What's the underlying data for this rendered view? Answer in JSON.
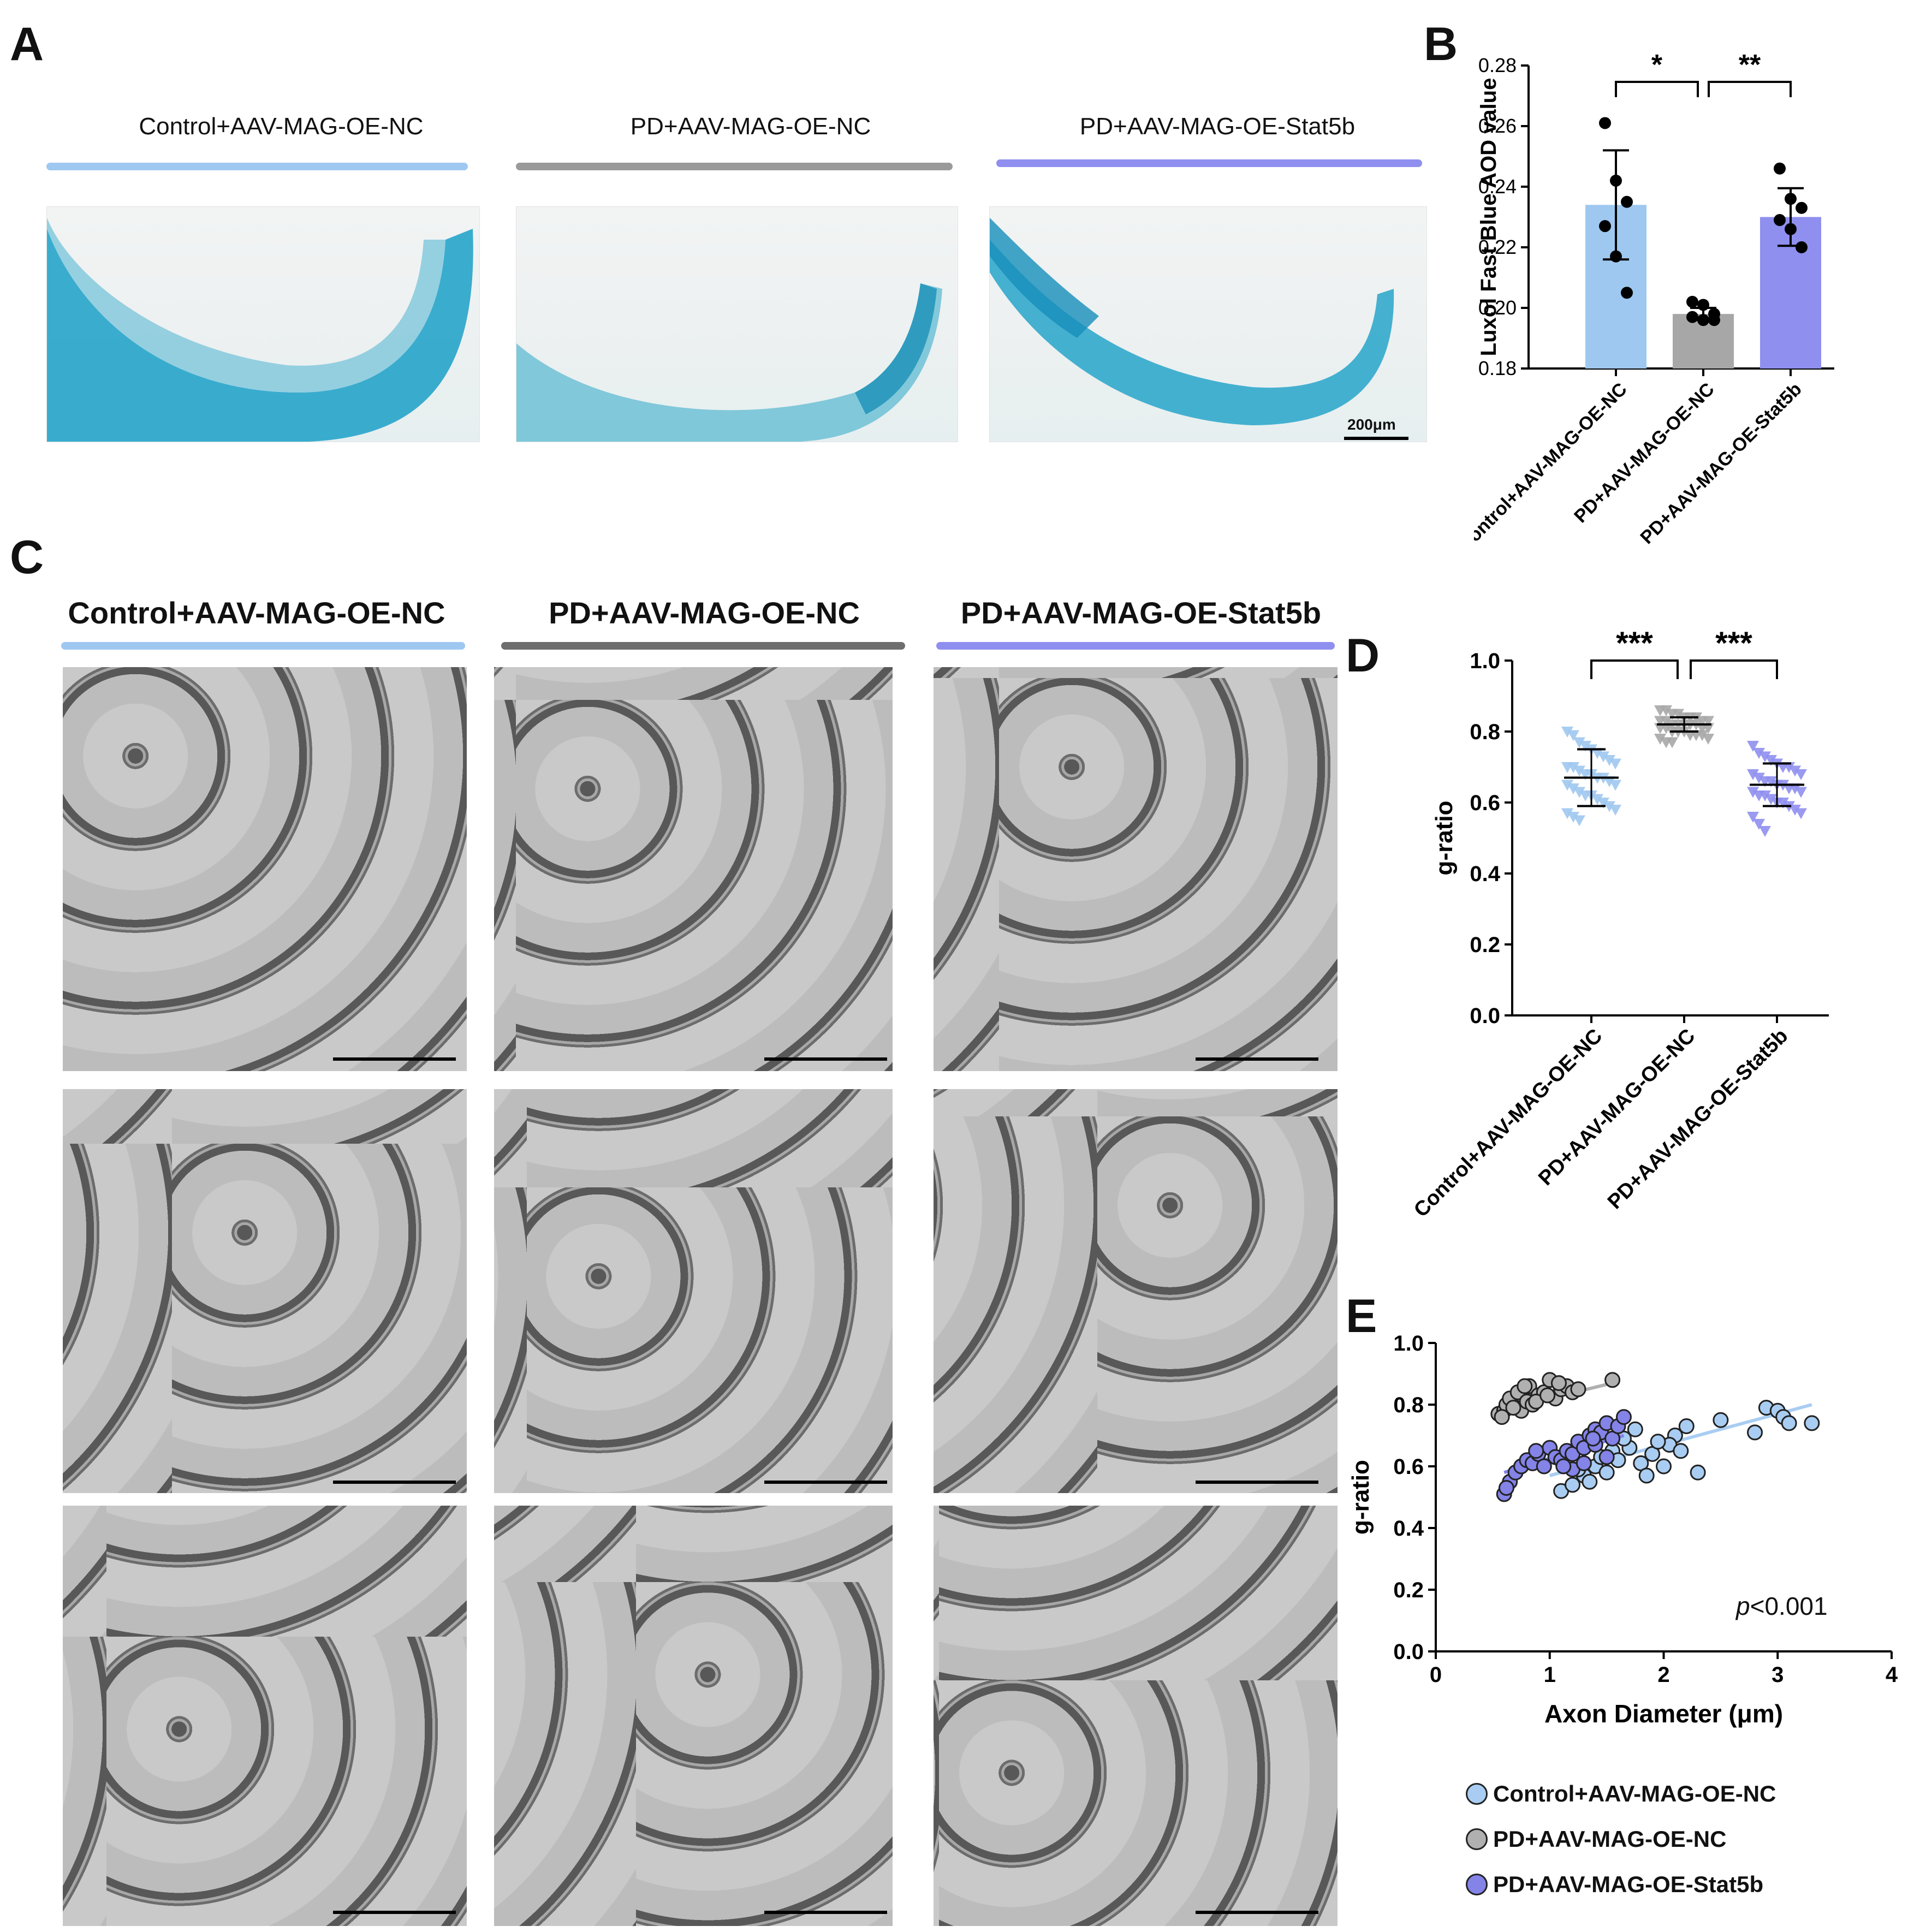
{
  "panels": {
    "A": {
      "letter": "A",
      "groups": [
        "Control+AAV-MAG-OE-NC",
        "PD+AAV-MAG-OE-NC",
        "PD+AAV-MAG-OE-Stat5b"
      ],
      "colors": [
        "#9ec8f0",
        "#9a9a9a",
        "#8f8ff0"
      ],
      "scale_label": "200μm"
    },
    "B": {
      "letter": "B"
    },
    "C": {
      "letter": "C",
      "groups": [
        "Control+AAV-MAG-OE-NC",
        "PD+AAV-MAG-OE-NC",
        "PD+AAV-MAG-OE-Stat5b"
      ],
      "colors": [
        "#9ec8f0",
        "#6e6e6e",
        "#8f8ff0"
      ]
    },
    "D": {
      "letter": "D"
    },
    "E": {
      "letter": "E",
      "p_prefix": "p",
      "p_value": "<0.001",
      "legend": [
        "Control+AAV-MAG-OE-NC",
        "PD+AAV-MAG-OE-NC",
        "PD+AAV-MAG-OE-Stat5b"
      ]
    }
  },
  "chart_data": [
    {
      "panel": "B",
      "type": "bar",
      "categories": [
        "Control+AAV-MAG-OE-NC",
        "PD+AAV-MAG-OE-NC",
        "PD+AAV-MAG-OE-Stat5b"
      ],
      "values": [
        0.234,
        0.198,
        0.23
      ],
      "errors": [
        0.018,
        0.002,
        0.0095
      ],
      "points": [
        [
          0.261,
          0.242,
          0.235,
          0.227,
          0.217,
          0.205
        ],
        [
          0.202,
          0.201,
          0.198,
          0.197,
          0.196,
          0.196
        ],
        [
          0.246,
          0.236,
          0.233,
          0.229,
          0.226,
          0.22
        ]
      ],
      "colors": [
        "#9ec8f0",
        "#a7a7a7",
        "#8f8ff0"
      ],
      "ylabel": "Luxol Fast Blue AOD value",
      "ylim": [
        0.18,
        0.28
      ],
      "yticks": [
        "0.18",
        "0.20",
        "0.22",
        "0.24",
        "0.26",
        "0.28"
      ],
      "significance": [
        {
          "pair": [
            0,
            1
          ],
          "label": "*"
        },
        {
          "pair": [
            1,
            2
          ],
          "label": "**"
        }
      ]
    },
    {
      "panel": "D",
      "type": "scatter",
      "categories": [
        "Control+AAV-MAG-OE-NC",
        "PD+AAV-MAG-OE-NC",
        "PD+AAV-MAG-OE-Stat5b"
      ],
      "means": [
        0.67,
        0.82,
        0.65
      ],
      "sd": [
        0.08,
        0.02,
        0.06
      ],
      "points": [
        [
          0.8,
          0.79,
          0.77,
          0.76,
          0.75,
          0.74,
          0.73,
          0.72,
          0.71,
          0.7,
          0.7,
          0.69,
          0.68,
          0.68,
          0.67,
          0.67,
          0.66,
          0.65,
          0.65,
          0.64,
          0.63,
          0.62,
          0.62,
          0.61,
          0.6,
          0.59,
          0.58,
          0.57,
          0.56,
          0.55
        ],
        [
          0.86,
          0.86,
          0.85,
          0.85,
          0.84,
          0.84,
          0.84,
          0.83,
          0.83,
          0.83,
          0.83,
          0.82,
          0.82,
          0.82,
          0.82,
          0.82,
          0.81,
          0.81,
          0.81,
          0.81,
          0.8,
          0.8,
          0.8,
          0.79,
          0.79,
          0.79,
          0.78,
          0.78,
          0.77,
          0.77
        ],
        [
          0.76,
          0.74,
          0.73,
          0.72,
          0.71,
          0.7,
          0.7,
          0.69,
          0.68,
          0.68,
          0.67,
          0.66,
          0.66,
          0.65,
          0.65,
          0.64,
          0.64,
          0.63,
          0.63,
          0.62,
          0.62,
          0.61,
          0.6,
          0.6,
          0.59,
          0.58,
          0.57,
          0.56,
          0.54,
          0.52
        ]
      ],
      "colors": [
        "#9ec8f0",
        "#a7a7a7",
        "#8f8ff0"
      ],
      "ylabel": "g-ratio",
      "ylim": [
        0.0,
        1.0
      ],
      "yticks": [
        "0.0",
        "0.2",
        "0.4",
        "0.6",
        "0.8",
        "1.0"
      ],
      "significance": [
        {
          "pair": [
            0,
            1
          ],
          "label": "***"
        },
        {
          "pair": [
            1,
            2
          ],
          "label": "***"
        }
      ]
    },
    {
      "panel": "E",
      "type": "scatter",
      "xlabel": "Axon Diameter (μm)",
      "ylabel": "g-ratio",
      "xlim": [
        0,
        4
      ],
      "ylim": [
        0.0,
        1.0
      ],
      "xticks": [
        "0",
        "1",
        "2",
        "3",
        "4"
      ],
      "yticks": [
        "0.0",
        "0.2",
        "0.4",
        "0.6",
        "0.8",
        "1.0"
      ],
      "series": [
        {
          "name": "Control+AAV-MAG-OE-NC",
          "color": "#a9cdf2",
          "x": [
            1.1,
            1.2,
            1.3,
            1.35,
            1.4,
            1.5,
            1.55,
            1.6,
            1.7,
            1.8,
            1.9,
            2.0,
            2.1,
            2.2,
            1.65,
            1.75,
            2.05,
            2.3,
            2.5,
            2.8,
            2.9,
            3.0,
            3.05,
            3.1,
            3.3,
            1.45,
            1.25,
            1.85,
            1.95,
            2.15
          ],
          "y": [
            0.52,
            0.54,
            0.57,
            0.55,
            0.6,
            0.58,
            0.65,
            0.62,
            0.66,
            0.61,
            0.64,
            0.6,
            0.7,
            0.73,
            0.69,
            0.72,
            0.67,
            0.58,
            0.75,
            0.71,
            0.79,
            0.78,
            0.76,
            0.74,
            0.74,
            0.63,
            0.59,
            0.57,
            0.68,
            0.65
          ],
          "trend": [
            [
              1.0,
              0.57
            ],
            [
              3.3,
              0.8
            ]
          ]
        },
        {
          "name": "PD+AAV-MAG-OE-NC",
          "color": "#b0b0b0",
          "x": [
            0.55,
            0.6,
            0.62,
            0.65,
            0.7,
            0.72,
            0.75,
            0.8,
            0.82,
            0.85,
            0.9,
            0.95,
            1.0,
            1.05,
            1.1,
            1.15,
            1.2,
            1.25,
            1.55,
            0.68,
            0.78,
            0.88,
            0.98,
            1.08,
            0.58
          ],
          "y": [
            0.77,
            0.78,
            0.8,
            0.82,
            0.79,
            0.84,
            0.78,
            0.81,
            0.86,
            0.8,
            0.83,
            0.84,
            0.88,
            0.82,
            0.85,
            0.86,
            0.84,
            0.85,
            0.88,
            0.79,
            0.86,
            0.81,
            0.83,
            0.87,
            0.76
          ],
          "trend": [
            [
              0.55,
              0.78
            ],
            [
              1.55,
              0.87
            ]
          ]
        },
        {
          "name": "PD+AAV-MAG-OE-Stat5b",
          "color": "#8383e8",
          "x": [
            0.6,
            0.65,
            0.7,
            0.75,
            0.8,
            0.85,
            0.9,
            0.95,
            1.0,
            1.05,
            1.1,
            1.15,
            1.2,
            1.25,
            1.3,
            1.35,
            1.4,
            1.45,
            1.5,
            1.55,
            1.6,
            1.65,
            1.2,
            1.3,
            1.4,
            1.5,
            0.62,
            0.88,
            1.12,
            1.38
          ],
          "y": [
            0.51,
            0.55,
            0.58,
            0.6,
            0.62,
            0.61,
            0.64,
            0.6,
            0.66,
            0.63,
            0.62,
            0.65,
            0.64,
            0.68,
            0.66,
            0.7,
            0.72,
            0.71,
            0.74,
            0.69,
            0.73,
            0.76,
            0.59,
            0.61,
            0.67,
            0.63,
            0.53,
            0.65,
            0.6,
            0.69
          ],
          "trend": [
            [
              0.6,
              0.58
            ],
            [
              1.65,
              0.7
            ]
          ]
        }
      ],
      "annotation": "p<0.001"
    }
  ]
}
